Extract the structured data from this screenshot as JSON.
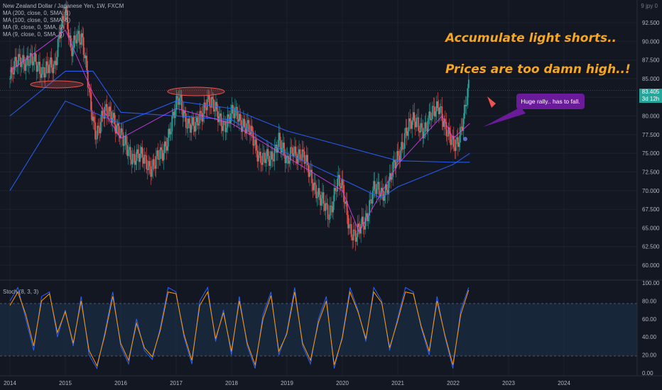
{
  "legend": {
    "title": "New Zealand Dollar / Japanese Yen, 1W, FXCM",
    "ma": [
      "MA (200, close, 0, SMA, 5)",
      "MA (100, close, 0, SMA, 5)",
      "MA (9, close, 0, SMA, 5)",
      "MA (9, close, 0, SMA, 5)"
    ]
  },
  "corner_label": "9 jpy 0",
  "annotations": {
    "line1": "Accumulate light shorts..",
    "line2": "Prices are too damn high..!",
    "callout": "Huge rally.. has to fall."
  },
  "last_price": {
    "value": "83.405",
    "countdown": "3d 12h"
  },
  "colors": {
    "background": "#131722",
    "up": "#26a69a",
    "down": "#ef5350",
    "ma_long": "#2962ff",
    "ma_short": "#e040fb",
    "stoch_k": "#2962ff",
    "stoch_d": "#ff9800",
    "annotation": "#f5a623",
    "callout": "#6a1b9a"
  },
  "stoch_label": "Stoch (8, 3, 3)",
  "chart_data": [
    {
      "type": "line",
      "subtype": "candlestick",
      "x_ticks": [
        "2014",
        "2015",
        "2016",
        "2017",
        "2018",
        "2019",
        "2020",
        "2021",
        "2022",
        "2023",
        "2024"
      ],
      "y_ticks": [
        "60.000",
        "62.500",
        "65.000",
        "67.500",
        "70.000",
        "72.500",
        "75.000",
        "77.500",
        "80.000",
        "82.500",
        "85.000",
        "87.500",
        "90.000",
        "92.500"
      ],
      "ylim": [
        58.5,
        95.5
      ],
      "price_path": [
        [
          "2014.0",
          85.0
        ],
        [
          "2014.2",
          88.0
        ],
        [
          "2014.4",
          87.0
        ],
        [
          "2014.6",
          86.5
        ],
        [
          "2014.8",
          86.0
        ],
        [
          "2014.9",
          92.0
        ],
        [
          "2015.0",
          94.0
        ],
        [
          "2015.1",
          88.0
        ],
        [
          "2015.2",
          91.5
        ],
        [
          "2015.3",
          90.5
        ],
        [
          "2015.45",
          81.5
        ],
        [
          "2015.55",
          78.0
        ],
        [
          "2015.7",
          80.0
        ],
        [
          "2015.85",
          80.5
        ],
        [
          "2016.05",
          76.0
        ],
        [
          "2016.2",
          75.0
        ],
        [
          "2016.4",
          74.0
        ],
        [
          "2016.55",
          73.5
        ],
        [
          "2016.75",
          74.5
        ],
        [
          "2016.9",
          79.0
        ],
        [
          "2017.05",
          82.0
        ],
        [
          "2017.2",
          79.5
        ],
        [
          "2017.35",
          78.0
        ],
        [
          "2017.55",
          82.5
        ],
        [
          "2017.7",
          80.5
        ],
        [
          "2017.9",
          79.0
        ],
        [
          "2018.1",
          80.5
        ],
        [
          "2018.3",
          78.0
        ],
        [
          "2018.5",
          75.0
        ],
        [
          "2018.7",
          73.5
        ],
        [
          "2018.85",
          77.5
        ],
        [
          "2019.0",
          73.0
        ],
        [
          "2019.1",
          76.0
        ],
        [
          "2019.3",
          74.0
        ],
        [
          "2019.45",
          72.0
        ],
        [
          "2019.6",
          68.5
        ],
        [
          "2019.75",
          67.0
        ],
        [
          "2019.9",
          71.0
        ],
        [
          "2020.0",
          70.0
        ],
        [
          "2020.15",
          65.0
        ],
        [
          "2020.25",
          63.5
        ],
        [
          "2020.4",
          66.0
        ],
        [
          "2020.55",
          70.0
        ],
        [
          "2020.7",
          69.5
        ],
        [
          "2020.85",
          71.5
        ],
        [
          "2021.0",
          74.0
        ],
        [
          "2021.15",
          78.5
        ],
        [
          "2021.35",
          79.0
        ],
        [
          "2021.5",
          78.5
        ],
        [
          "2021.6",
          79.5
        ],
        [
          "2021.75",
          82.0
        ],
        [
          "2021.9",
          77.0
        ],
        [
          "2022.0",
          76.0
        ],
        [
          "2022.1",
          77.5
        ],
        [
          "2022.2",
          80.0
        ],
        [
          "2022.28",
          83.4
        ]
      ],
      "moving_averages": [
        {
          "name": "MA (200, close, 0, SMA, 5)",
          "values": [
            [
              "2014.0",
              70.0
            ],
            [
              "2015.0",
              82.0
            ],
            [
              "2016.0",
              79.0
            ],
            [
              "2017.0",
              82.0
            ],
            [
              "2018.0",
              81.0
            ],
            [
              "2019.0",
              78.0
            ],
            [
              "2020.0",
              76.0
            ],
            [
              "2021.0",
              74.0
            ],
            [
              "2022.0",
              73.8
            ],
            [
              "2022.3",
              73.8
            ]
          ]
        },
        {
          "name": "MA (100, close, 0, SMA, 5)",
          "values": [
            [
              "2014.0",
              80.0
            ],
            [
              "2015.0",
              86.0
            ],
            [
              "2015.5",
              86.0
            ],
            [
              "2016.0",
              80.5
            ],
            [
              "2017.0",
              80.0
            ],
            [
              "2018.0",
              79.5
            ],
            [
              "2019.0",
              75.0
            ],
            [
              "2020.0",
              71.5
            ],
            [
              "2020.7",
              69.0
            ],
            [
              "2021.0",
              70.5
            ],
            [
              "2022.0",
              73.5
            ],
            [
              "2022.3",
              75.0
            ]
          ]
        },
        {
          "name": "MA (9, close, 0, SMA, 5)",
          "values": [
            [
              "2014.0",
              86.0
            ],
            [
              "2015.0",
              91.5
            ],
            [
              "2015.5",
              83.0
            ],
            [
              "2016.0",
              77.0
            ],
            [
              "2017.0",
              81.0
            ],
            [
              "2018.0",
              79.0
            ],
            [
              "2019.0",
              74.5
            ],
            [
              "2020.0",
              70.0
            ],
            [
              "2020.3",
              64.5
            ],
            [
              "2021.0",
              73.5
            ],
            [
              "2021.8",
              80.0
            ],
            [
              "2022.0",
              77.0
            ],
            [
              "2022.3",
              79.0
            ]
          ]
        }
      ],
      "last_price": 83.405
    },
    {
      "type": "line",
      "subtype": "stochastic",
      "y_ticks": [
        "0.00",
        "20.00",
        "40.00",
        "60.00",
        "80.00",
        "100.00"
      ],
      "ylim": [
        0,
        100
      ],
      "bands": [
        20,
        80
      ],
      "series": [
        {
          "name": "%K",
          "values": [
            80,
            95,
            60,
            25,
            85,
            90,
            40,
            70,
            30,
            85,
            20,
            5,
            45,
            90,
            30,
            10,
            60,
            25,
            15,
            50,
            95,
            90,
            40,
            10,
            80,
            95,
            35,
            70,
            20,
            85,
            30,
            5,
            65,
            90,
            20,
            45,
            95,
            30,
            10,
            60,
            85,
            5,
            40,
            95,
            70,
            35,
            95,
            80,
            25,
            60,
            95,
            90,
            50,
            20,
            85,
            40,
            5,
            70,
            95
          ]
        },
        {
          "name": "%D",
          "values": [
            75,
            90,
            65,
            30,
            80,
            88,
            45,
            68,
            33,
            80,
            25,
            8,
            42,
            85,
            33,
            14,
            55,
            28,
            18,
            47,
            90,
            88,
            43,
            14,
            75,
            90,
            38,
            67,
            24,
            80,
            33,
            9,
            60,
            86,
            24,
            43,
            90,
            33,
            14,
            56,
            80,
            9,
            38,
            90,
            68,
            38,
            90,
            78,
            28,
            57,
            90,
            88,
            52,
            24,
            80,
            42,
            9,
            65,
            92
          ]
        }
      ]
    }
  ]
}
